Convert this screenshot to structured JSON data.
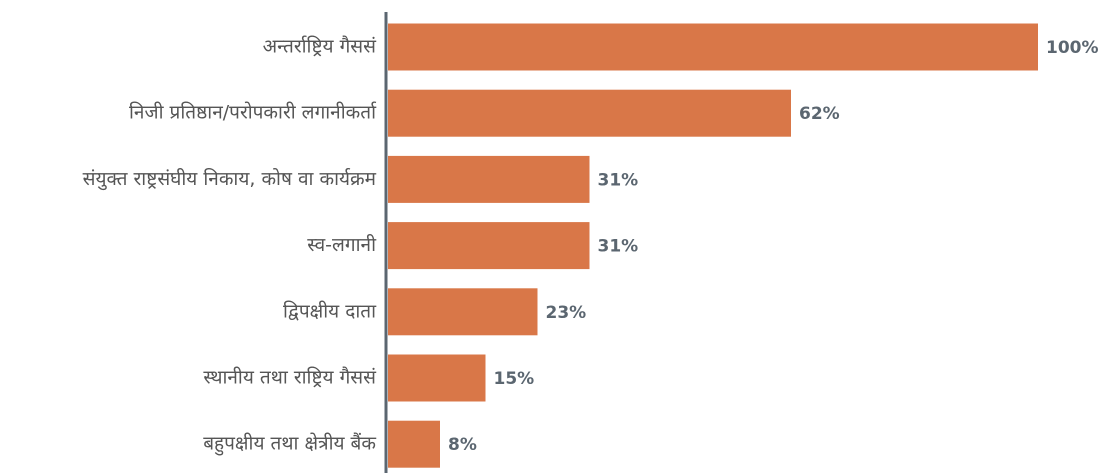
{
  "chart_data": {
    "type": "bar",
    "orientation": "horizontal",
    "categories": [
      "अन्तर्राष्ट्रिय गैससं",
      "निजी प्रतिष्ठान/परोपकारी लगानीकर्ता",
      "संयुक्त राष्ट्रसंघीय निकाय, कोष वा कार्यक्रम",
      "स्व-लगानी",
      "द्विपक्षीय दाता",
      "स्थानीय तथा राष्ट्रिय गैससं",
      "बहुपक्षीय तथा क्षेत्रीय बैंक"
    ],
    "values": [
      100,
      62,
      31,
      31,
      23,
      15,
      8
    ],
    "value_labels": [
      "100%",
      "62%",
      "31%",
      "31%",
      "23%",
      "15%",
      "8%"
    ],
    "color": "#d97748",
    "xlim": [
      0,
      100
    ]
  }
}
